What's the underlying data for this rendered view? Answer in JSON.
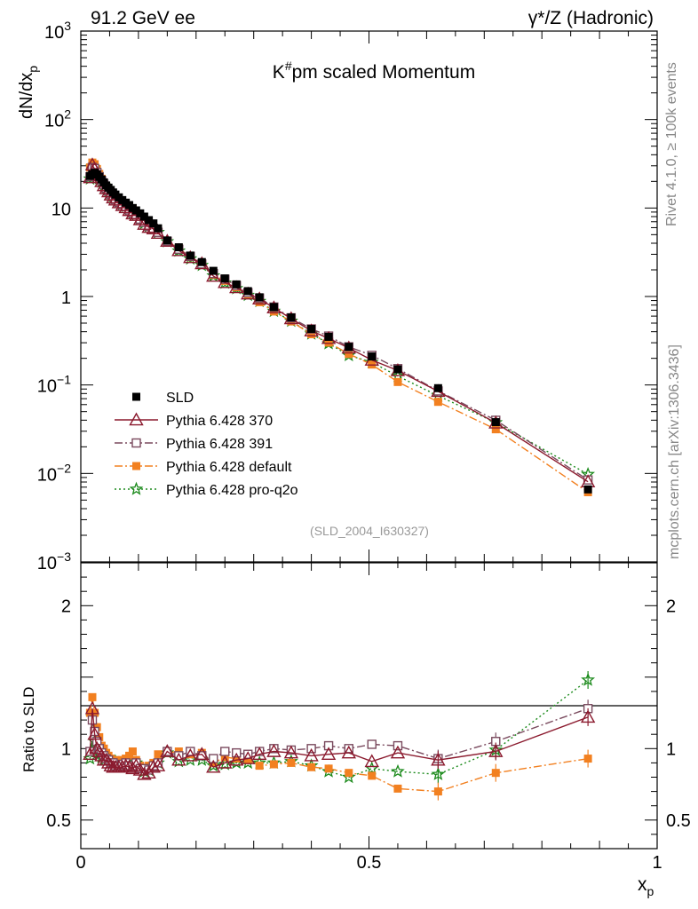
{
  "header": {
    "left": "91.2 GeV ee",
    "right": "γ*/Z (Hadronic)"
  },
  "side_labels": {
    "top": "Rivet 4.1.0, ≥ 100k events",
    "bottom": "mcplots.cern.ch [arXiv:1306.3436]"
  },
  "chart_data": {
    "type": "scatter",
    "title": "K#pm scaled Momentum",
    "title_main": "K",
    "title_sup": "#",
    "title_rest": "pm scaled Momentum",
    "analysis_tag": "(SLD_2004_I630327)",
    "xlabel": "x",
    "xlabel_sub": "p",
    "ylabel": "dN/dx",
    "ylabel_sub": "p",
    "ratio_ylabel": "Ratio to SLD",
    "xlim": [
      0,
      1
    ],
    "ylim": [
      0.001,
      1000
    ],
    "ratio_ylim": [
      0.3,
      2.3
    ],
    "yscale": "log",
    "x_ticks": [
      {
        "v": 0,
        "label": "0"
      },
      {
        "v": 0.5,
        "label": "0.5"
      },
      {
        "v": 1,
        "label": "1"
      }
    ],
    "y_ticks": [
      {
        "v": 1000,
        "label": "10",
        "sup": "3"
      },
      {
        "v": 100,
        "label": "10",
        "sup": "2"
      },
      {
        "v": 10,
        "label": "10",
        "sup": ""
      },
      {
        "v": 1,
        "label": "1",
        "sup": ""
      },
      {
        "v": 0.1,
        "label": "10",
        "sup": "−1"
      },
      {
        "v": 0.01,
        "label": "10",
        "sup": "−2"
      },
      {
        "v": 0.001,
        "label": "10",
        "sup": "−3"
      }
    ],
    "ratio_ticks": [
      {
        "v": 0.5,
        "label": "0.5"
      },
      {
        "v": 1,
        "label": "1"
      },
      {
        "v": 2,
        "label": "2"
      }
    ],
    "legend": [
      {
        "label": "SLD"
      },
      {
        "label": "Pythia 6.428 370"
      },
      {
        "label": "Pythia 6.428 391"
      },
      {
        "label": "Pythia 6.428 default"
      },
      {
        "label": "Pythia 6.428 pro-q2o"
      }
    ],
    "x": [
      0.016,
      0.02,
      0.024,
      0.028,
      0.032,
      0.036,
      0.04,
      0.044,
      0.048,
      0.052,
      0.056,
      0.06,
      0.066,
      0.072,
      0.078,
      0.084,
      0.09,
      0.096,
      0.103,
      0.11,
      0.118,
      0.126,
      0.134,
      0.15,
      0.17,
      0.19,
      0.21,
      0.23,
      0.25,
      0.27,
      0.29,
      0.31,
      0.335,
      0.365,
      0.4,
      0.43,
      0.465,
      0.505,
      0.55,
      0.62,
      0.72,
      0.88
    ],
    "series": [
      {
        "name": "SLD",
        "color": "#000000",
        "marker": "square-filled",
        "dash": "",
        "values": [
          23.0,
          24.0,
          25.0,
          24.0,
          22.5,
          21.0,
          19.5,
          18.0,
          17.0,
          16.0,
          15.0,
          14.2,
          13.2,
          12.3,
          11.5,
          10.8,
          10.0,
          9.4,
          8.7,
          8.0,
          7.3,
          6.7,
          5.9,
          4.3,
          3.6,
          2.9,
          2.45,
          1.95,
          1.6,
          1.37,
          1.15,
          0.98,
          0.76,
          0.58,
          0.43,
          0.35,
          0.27,
          0.21,
          0.15,
          0.092,
          0.038,
          0.0066
        ]
      },
      {
        "name": "Pythia 6.428 370",
        "color": "#8b1a2e",
        "marker": "triangle-open",
        "dash": "",
        "ratio": [
          0.96,
          1.28,
          1.1,
          1.0,
          0.98,
          0.95,
          0.92,
          0.92,
          0.9,
          0.88,
          0.87,
          0.87,
          0.87,
          0.87,
          0.88,
          0.87,
          0.86,
          0.88,
          0.85,
          0.82,
          0.83,
          0.87,
          0.88,
          0.98,
          0.92,
          0.95,
          0.96,
          0.87,
          0.9,
          0.92,
          0.93,
          0.96,
          0.98,
          0.97,
          0.95,
          0.96,
          0.97,
          0.91,
          0.97,
          0.92,
          0.98,
          1.22
        ]
      },
      {
        "name": "Pythia 6.428 391",
        "color": "#7a4a5e",
        "marker": "square-open",
        "dash": "9 3 2 3",
        "ratio": [
          0.98,
          1.2,
          1.12,
          1.05,
          1.0,
          0.97,
          0.95,
          0.93,
          0.92,
          0.9,
          0.9,
          0.88,
          0.88,
          0.89,
          0.9,
          0.88,
          0.88,
          0.9,
          0.86,
          0.86,
          0.85,
          0.88,
          0.9,
          0.98,
          0.95,
          0.98,
          0.95,
          0.93,
          0.98,
          0.97,
          0.96,
          0.98,
          1.0,
          0.99,
          1.0,
          1.02,
          1.0,
          1.03,
          1.02,
          0.93,
          1.05,
          1.28
        ]
      },
      {
        "name": "Pythia 6.428 default",
        "color": "#f28020",
        "marker": "square-filled",
        "dash": "9 3 2 3",
        "ratio": [
          1.25,
          1.36,
          1.25,
          1.15,
          1.08,
          1.02,
          1.0,
          0.97,
          0.95,
          0.93,
          0.9,
          0.92,
          0.91,
          0.92,
          0.93,
          0.95,
          0.98,
          0.92,
          0.88,
          0.86,
          0.88,
          0.9,
          0.96,
          0.97,
          0.98,
          0.96,
          0.97,
          0.9,
          0.94,
          0.93,
          0.92,
          0.88,
          0.89,
          0.9,
          0.87,
          0.86,
          0.83,
          0.81,
          0.72,
          0.7,
          0.83,
          0.93
        ]
      },
      {
        "name": "Pythia 6.428 pro-q2o",
        "color": "#1b8a1b",
        "marker": "star",
        "dash": "2 3",
        "ratio": [
          0.93,
          1.22,
          1.05,
          1.0,
          0.96,
          0.94,
          0.92,
          0.93,
          0.92,
          0.91,
          0.9,
          0.91,
          0.89,
          0.9,
          0.91,
          0.89,
          0.88,
          0.9,
          0.87,
          0.84,
          0.85,
          0.88,
          0.9,
          0.97,
          0.91,
          0.92,
          0.92,
          0.88,
          0.89,
          0.9,
          0.9,
          0.9,
          0.9,
          0.91,
          0.88,
          0.84,
          0.8,
          0.86,
          0.84,
          0.82,
          0.99,
          1.48
        ]
      }
    ]
  }
}
